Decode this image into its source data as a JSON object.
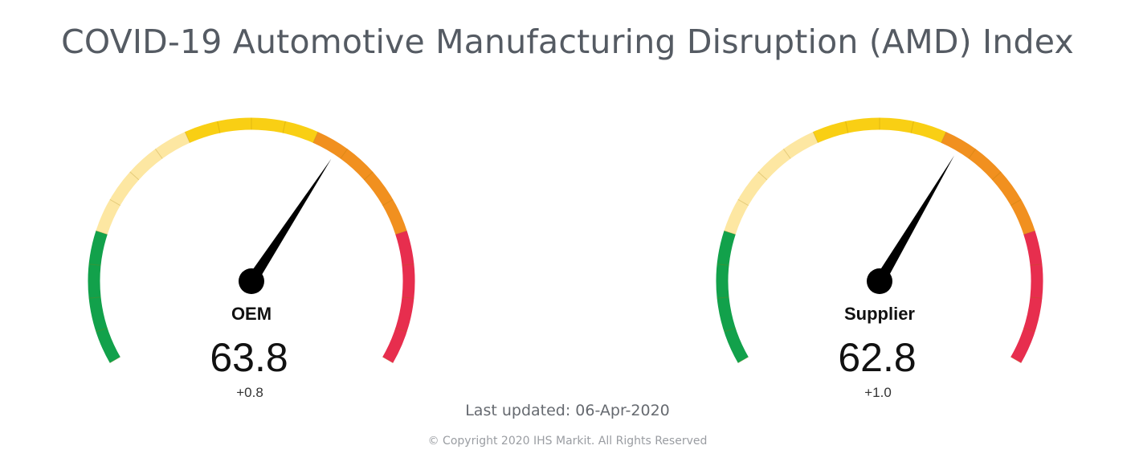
{
  "title": "COVID-19 Automotive Manufacturing Disruption (AMD) Index",
  "last_updated": "Last updated: 06-Apr-2020",
  "copyright": "© Copyright 2020 IHS Markit. All Rights Reserved",
  "chart_data": [
    {
      "type": "gauge",
      "label": "OEM",
      "value": 63.8,
      "value_text": "63.8",
      "change_text": "+0.8",
      "range": [
        0,
        100
      ],
      "bands": [
        {
          "from": 0,
          "to": 20,
          "color": "#12a14b"
        },
        {
          "from": 20,
          "to": 40,
          "color": "#fde7a2"
        },
        {
          "from": 40,
          "to": 60,
          "color": "#f9cf14"
        },
        {
          "from": 60,
          "to": 80,
          "color": "#f1901f"
        },
        {
          "from": 80,
          "to": 100,
          "color": "#e72e4e"
        }
      ]
    },
    {
      "type": "gauge",
      "label": "Supplier",
      "value": 62.8,
      "value_text": "62.8",
      "change_text": "+1.0",
      "range": [
        0,
        100
      ],
      "bands": [
        {
          "from": 0,
          "to": 20,
          "color": "#12a14b"
        },
        {
          "from": 20,
          "to": 40,
          "color": "#fde7a2"
        },
        {
          "from": 40,
          "to": 60,
          "color": "#f9cf14"
        },
        {
          "from": 60,
          "to": 80,
          "color": "#f1901f"
        },
        {
          "from": 80,
          "to": 100,
          "color": "#e72e4e"
        }
      ]
    }
  ]
}
